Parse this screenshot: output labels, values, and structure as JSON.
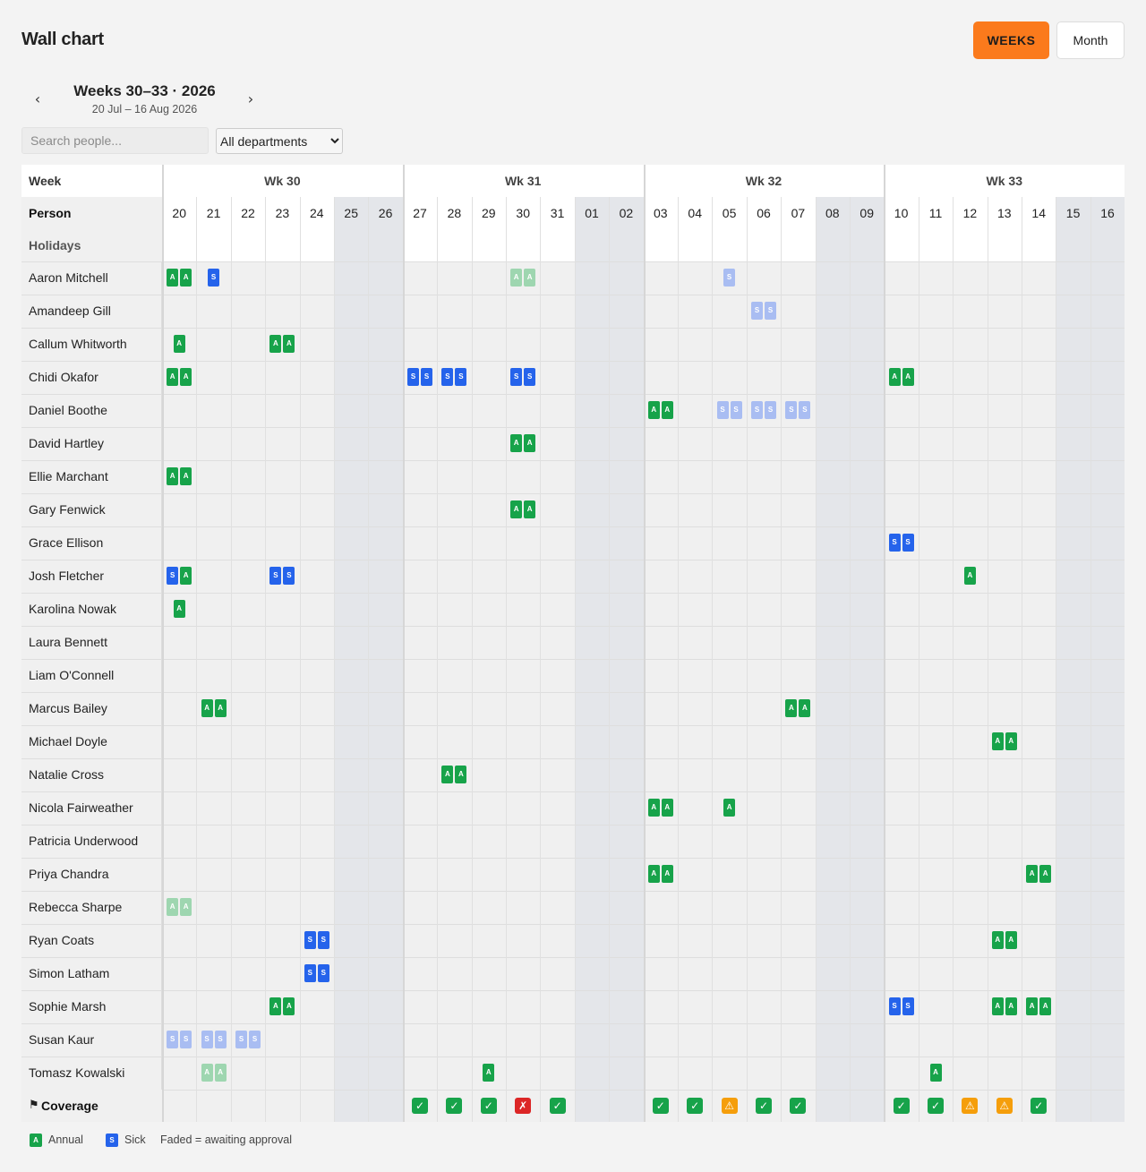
{
  "page_title": "Wall chart",
  "view_toggle": {
    "weeks_label": "WEEKS",
    "month_label": "Month",
    "active": "weeks"
  },
  "nav": {
    "prev": "‹",
    "next": "›",
    "title": "Weeks 30–33 · 2026",
    "subtitle": "20 Jul – 16 Aug 2026"
  },
  "search": {
    "placeholder": "Search people...",
    "value": ""
  },
  "department_filter": {
    "selected": "All departments"
  },
  "colors": {
    "accent": "#fb7a1c",
    "annual": "#17a34a",
    "sick": "#2563eb",
    "annual_pending": "#9ed6b0",
    "sick_pending": "#a9bdf2",
    "ok": "#17a34a",
    "bad": "#dc2626",
    "warn": "#f59e0b",
    "weekend": "#e4e6ea"
  },
  "table": {
    "week_header": "Week",
    "person_header": "Person",
    "holidays_header": "Holidays",
    "coverage_header": "Coverage",
    "coverage_icon": "flag-icon",
    "weeks": [
      {
        "label": "Wk 30",
        "days": [
          "20",
          "21",
          "22",
          "23",
          "24",
          "25",
          "26"
        ]
      },
      {
        "label": "Wk 31",
        "days": [
          "27",
          "28",
          "29",
          "30",
          "31",
          "01",
          "02"
        ]
      },
      {
        "label": "Wk 32",
        "days": [
          "03",
          "04",
          "05",
          "06",
          "07",
          "08",
          "09"
        ]
      },
      {
        "label": "Wk 33",
        "days": [
          "10",
          "11",
          "12",
          "13",
          "14",
          "15",
          "16"
        ]
      }
    ],
    "weekend_day_indexes": [
      5,
      6,
      12,
      13,
      19,
      20,
      26,
      27
    ],
    "people": [
      {
        "name": "Aaron Mitchell",
        "absences": [
          {
            "day": 0,
            "marks": [
              {
                "t": "A",
                "s": "approved"
              },
              {
                "t": "A",
                "s": "approved"
              }
            ]
          },
          {
            "day": 1,
            "marks": [
              {
                "t": "S",
                "s": "approved"
              }
            ]
          },
          {
            "day": 10,
            "marks": [
              {
                "t": "A",
                "s": "pending"
              },
              {
                "t": "A",
                "s": "pending"
              }
            ]
          },
          {
            "day": 16,
            "marks": [
              {
                "t": "S",
                "s": "pending"
              }
            ]
          }
        ]
      },
      {
        "name": "Amandeep Gill",
        "absences": [
          {
            "day": 17,
            "marks": [
              {
                "t": "S",
                "s": "pending"
              },
              {
                "t": "S",
                "s": "pending"
              }
            ]
          }
        ]
      },
      {
        "name": "Callum Whitworth",
        "absences": [
          {
            "day": 0,
            "marks": [
              {
                "t": "A",
                "s": "approved"
              }
            ]
          },
          {
            "day": 3,
            "marks": [
              {
                "t": "A",
                "s": "approved"
              },
              {
                "t": "A",
                "s": "approved"
              }
            ]
          }
        ]
      },
      {
        "name": "Chidi Okafor",
        "absences": [
          {
            "day": 0,
            "marks": [
              {
                "t": "A",
                "s": "approved"
              },
              {
                "t": "A",
                "s": "approved"
              }
            ]
          },
          {
            "day": 7,
            "marks": [
              {
                "t": "S",
                "s": "approved"
              },
              {
                "t": "S",
                "s": "approved"
              }
            ]
          },
          {
            "day": 8,
            "marks": [
              {
                "t": "S",
                "s": "approved"
              },
              {
                "t": "S",
                "s": "approved"
              }
            ]
          },
          {
            "day": 10,
            "marks": [
              {
                "t": "S",
                "s": "approved"
              },
              {
                "t": "S",
                "s": "approved"
              }
            ]
          },
          {
            "day": 21,
            "marks": [
              {
                "t": "A",
                "s": "approved"
              },
              {
                "t": "A",
                "s": "approved"
              }
            ]
          }
        ]
      },
      {
        "name": "Daniel Boothe",
        "absences": [
          {
            "day": 14,
            "marks": [
              {
                "t": "A",
                "s": "approved"
              },
              {
                "t": "A",
                "s": "approved"
              }
            ]
          },
          {
            "day": 16,
            "marks": [
              {
                "t": "S",
                "s": "pending"
              },
              {
                "t": "S",
                "s": "pending"
              }
            ]
          },
          {
            "day": 17,
            "marks": [
              {
                "t": "S",
                "s": "pending"
              },
              {
                "t": "S",
                "s": "pending"
              }
            ]
          },
          {
            "day": 18,
            "marks": [
              {
                "t": "S",
                "s": "pending"
              },
              {
                "t": "S",
                "s": "pending"
              }
            ]
          }
        ]
      },
      {
        "name": "David Hartley",
        "absences": [
          {
            "day": 10,
            "marks": [
              {
                "t": "A",
                "s": "approved"
              },
              {
                "t": "A",
                "s": "approved"
              }
            ]
          }
        ]
      },
      {
        "name": "Ellie Marchant",
        "absences": [
          {
            "day": 0,
            "marks": [
              {
                "t": "A",
                "s": "approved"
              },
              {
                "t": "A",
                "s": "approved"
              }
            ]
          }
        ]
      },
      {
        "name": "Gary Fenwick",
        "absences": [
          {
            "day": 10,
            "marks": [
              {
                "t": "A",
                "s": "approved"
              },
              {
                "t": "A",
                "s": "approved"
              }
            ]
          }
        ]
      },
      {
        "name": "Grace Ellison",
        "absences": [
          {
            "day": 21,
            "marks": [
              {
                "t": "S",
                "s": "approved"
              },
              {
                "t": "S",
                "s": "approved"
              }
            ]
          }
        ]
      },
      {
        "name": "Josh Fletcher",
        "absences": [
          {
            "day": 0,
            "marks": [
              {
                "t": "S",
                "s": "approved"
              },
              {
                "t": "A",
                "s": "approved"
              }
            ]
          },
          {
            "day": 3,
            "marks": [
              {
                "t": "S",
                "s": "approved"
              },
              {
                "t": "S",
                "s": "approved"
              }
            ]
          },
          {
            "day": 23,
            "marks": [
              {
                "t": "A",
                "s": "approved"
              }
            ]
          }
        ]
      },
      {
        "name": "Karolina Nowak",
        "absences": [
          {
            "day": 0,
            "marks": [
              {
                "t": "A",
                "s": "approved"
              }
            ]
          }
        ]
      },
      {
        "name": "Laura Bennett",
        "absences": []
      },
      {
        "name": "Liam O'Connell",
        "absences": []
      },
      {
        "name": "Marcus Bailey",
        "absences": [
          {
            "day": 1,
            "marks": [
              {
                "t": "A",
                "s": "approved"
              },
              {
                "t": "A",
                "s": "approved"
              }
            ]
          },
          {
            "day": 18,
            "marks": [
              {
                "t": "A",
                "s": "approved"
              },
              {
                "t": "A",
                "s": "approved"
              }
            ]
          }
        ]
      },
      {
        "name": "Michael Doyle",
        "absences": [
          {
            "day": 24,
            "marks": [
              {
                "t": "A",
                "s": "approved"
              },
              {
                "t": "A",
                "s": "approved"
              }
            ]
          }
        ]
      },
      {
        "name": "Natalie Cross",
        "absences": [
          {
            "day": 8,
            "marks": [
              {
                "t": "A",
                "s": "approved"
              },
              {
                "t": "A",
                "s": "approved"
              }
            ]
          }
        ]
      },
      {
        "name": "Nicola Fairweather",
        "absences": [
          {
            "day": 14,
            "marks": [
              {
                "t": "A",
                "s": "approved"
              },
              {
                "t": "A",
                "s": "approved"
              }
            ]
          },
          {
            "day": 16,
            "marks": [
              {
                "t": "A",
                "s": "approved"
              }
            ]
          }
        ]
      },
      {
        "name": "Patricia Underwood",
        "absences": []
      },
      {
        "name": "Priya Chandra",
        "absences": [
          {
            "day": 14,
            "marks": [
              {
                "t": "A",
                "s": "approved"
              },
              {
                "t": "A",
                "s": "approved"
              }
            ]
          },
          {
            "day": 25,
            "marks": [
              {
                "t": "A",
                "s": "approved"
              },
              {
                "t": "A",
                "s": "approved"
              }
            ]
          }
        ]
      },
      {
        "name": "Rebecca Sharpe",
        "absences": [
          {
            "day": 0,
            "marks": [
              {
                "t": "A",
                "s": "pending"
              },
              {
                "t": "A",
                "s": "pending"
              }
            ]
          }
        ]
      },
      {
        "name": "Ryan Coats",
        "absences": [
          {
            "day": 4,
            "marks": [
              {
                "t": "S",
                "s": "approved"
              },
              {
                "t": "S",
                "s": "approved"
              }
            ]
          },
          {
            "day": 24,
            "marks": [
              {
                "t": "A",
                "s": "approved"
              },
              {
                "t": "A",
                "s": "approved"
              }
            ]
          }
        ]
      },
      {
        "name": "Simon Latham",
        "absences": [
          {
            "day": 4,
            "marks": [
              {
                "t": "S",
                "s": "approved"
              },
              {
                "t": "S",
                "s": "approved"
              }
            ]
          }
        ]
      },
      {
        "name": "Sophie Marsh",
        "absences": [
          {
            "day": 3,
            "marks": [
              {
                "t": "A",
                "s": "approved"
              },
              {
                "t": "A",
                "s": "approved"
              }
            ]
          },
          {
            "day": 21,
            "marks": [
              {
                "t": "S",
                "s": "approved"
              },
              {
                "t": "S",
                "s": "approved"
              }
            ]
          },
          {
            "day": 24,
            "marks": [
              {
                "t": "A",
                "s": "approved"
              },
              {
                "t": "A",
                "s": "approved"
              }
            ]
          },
          {
            "day": 25,
            "marks": [
              {
                "t": "A",
                "s": "approved"
              },
              {
                "t": "A",
                "s": "approved"
              }
            ]
          }
        ]
      },
      {
        "name": "Susan Kaur",
        "absences": [
          {
            "day": 0,
            "marks": [
              {
                "t": "S",
                "s": "pending"
              },
              {
                "t": "S",
                "s": "pending"
              }
            ]
          },
          {
            "day": 1,
            "marks": [
              {
                "t": "S",
                "s": "pending"
              },
              {
                "t": "S",
                "s": "pending"
              }
            ]
          },
          {
            "day": 2,
            "marks": [
              {
                "t": "S",
                "s": "pending"
              },
              {
                "t": "S",
                "s": "pending"
              }
            ]
          }
        ]
      },
      {
        "name": "Tomasz Kowalski",
        "absences": [
          {
            "day": 1,
            "marks": [
              {
                "t": "A",
                "s": "pending"
              },
              {
                "t": "A",
                "s": "pending"
              }
            ]
          },
          {
            "day": 9,
            "marks": [
              {
                "t": "A",
                "s": "approved"
              }
            ]
          },
          {
            "day": 22,
            "marks": [
              {
                "t": "A",
                "s": "approved"
              }
            ]
          }
        ]
      }
    ],
    "coverage": [
      {
        "day": 7,
        "status": "ok",
        "glyph": "✓"
      },
      {
        "day": 8,
        "status": "ok",
        "glyph": "✓"
      },
      {
        "day": 9,
        "status": "ok",
        "glyph": "✓"
      },
      {
        "day": 10,
        "status": "bad",
        "glyph": "✗"
      },
      {
        "day": 11,
        "status": "ok",
        "glyph": "✓"
      },
      {
        "day": 14,
        "status": "ok",
        "glyph": "✓"
      },
      {
        "day": 15,
        "status": "ok",
        "glyph": "✓"
      },
      {
        "day": 16,
        "status": "warn",
        "glyph": "⚠"
      },
      {
        "day": 17,
        "status": "ok",
        "glyph": "✓"
      },
      {
        "day": 18,
        "status": "ok",
        "glyph": "✓"
      },
      {
        "day": 21,
        "status": "ok",
        "glyph": "✓"
      },
      {
        "day": 22,
        "status": "ok",
        "glyph": "✓"
      },
      {
        "day": 23,
        "status": "warn",
        "glyph": "⚠"
      },
      {
        "day": 24,
        "status": "warn",
        "glyph": "⚠"
      },
      {
        "day": 25,
        "status": "ok",
        "glyph": "✓"
      }
    ]
  },
  "legend": {
    "annual_letter": "A",
    "annual_label": "Annual",
    "sick_letter": "S",
    "sick_label": "Sick",
    "note": "Faded = awaiting approval"
  }
}
